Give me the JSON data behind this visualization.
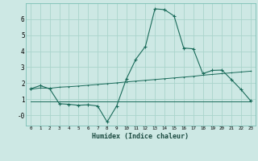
{
  "xlabel": "Humidex (Indice chaleur)",
  "bg_color": "#cde8e4",
  "grid_color": "#aad4cc",
  "line_color": "#1a6b5a",
  "xlim": [
    -0.5,
    23.5
  ],
  "ylim": [
    -0.65,
    7.0
  ],
  "xticks": [
    0,
    1,
    2,
    3,
    4,
    5,
    6,
    7,
    8,
    9,
    10,
    11,
    12,
    13,
    14,
    15,
    16,
    17,
    18,
    19,
    20,
    21,
    22,
    23
  ],
  "yticks": [
    0,
    1,
    2,
    3,
    4,
    5,
    6
  ],
  "ytick_labels": [
    "-0",
    "1",
    "2",
    "3",
    "4",
    "5",
    "6"
  ],
  "line1_x": [
    0,
    1,
    2,
    3,
    4,
    5,
    6,
    7,
    8,
    9,
    10,
    11,
    12,
    13,
    14,
    15,
    16,
    17,
    18,
    19,
    20,
    21,
    22,
    23
  ],
  "line1_y": [
    1.65,
    1.85,
    1.65,
    0.72,
    0.68,
    0.62,
    0.65,
    0.58,
    -0.42,
    0.58,
    2.25,
    3.5,
    4.3,
    6.65,
    6.6,
    6.2,
    4.2,
    4.15,
    2.6,
    2.8,
    2.82,
    2.22,
    1.6,
    0.9
  ],
  "line2_x": [
    0,
    1,
    2,
    3,
    4,
    5,
    6,
    7,
    8,
    9,
    10,
    11,
    12,
    13,
    14,
    15,
    16,
    17,
    18,
    19,
    20,
    21,
    22,
    23
  ],
  "line2_y": [
    1.62,
    1.7,
    1.68,
    1.75,
    1.78,
    1.82,
    1.87,
    1.92,
    1.97,
    2.02,
    2.08,
    2.13,
    2.18,
    2.23,
    2.28,
    2.33,
    2.38,
    2.43,
    2.5,
    2.55,
    2.6,
    2.65,
    2.7,
    2.75
  ],
  "line3_x": [
    0,
    1,
    2,
    3,
    4,
    5,
    6,
    7,
    8,
    9,
    10,
    11,
    12,
    13,
    14,
    15,
    16,
    17,
    18,
    19,
    20,
    21,
    22,
    23
  ],
  "line3_y": [
    0.85,
    0.85,
    0.85,
    0.85,
    0.85,
    0.85,
    0.85,
    0.85,
    0.85,
    0.85,
    0.85,
    0.85,
    0.85,
    0.85,
    0.85,
    0.85,
    0.85,
    0.85,
    0.85,
    0.85,
    0.85,
    0.85,
    0.85,
    0.85
  ]
}
